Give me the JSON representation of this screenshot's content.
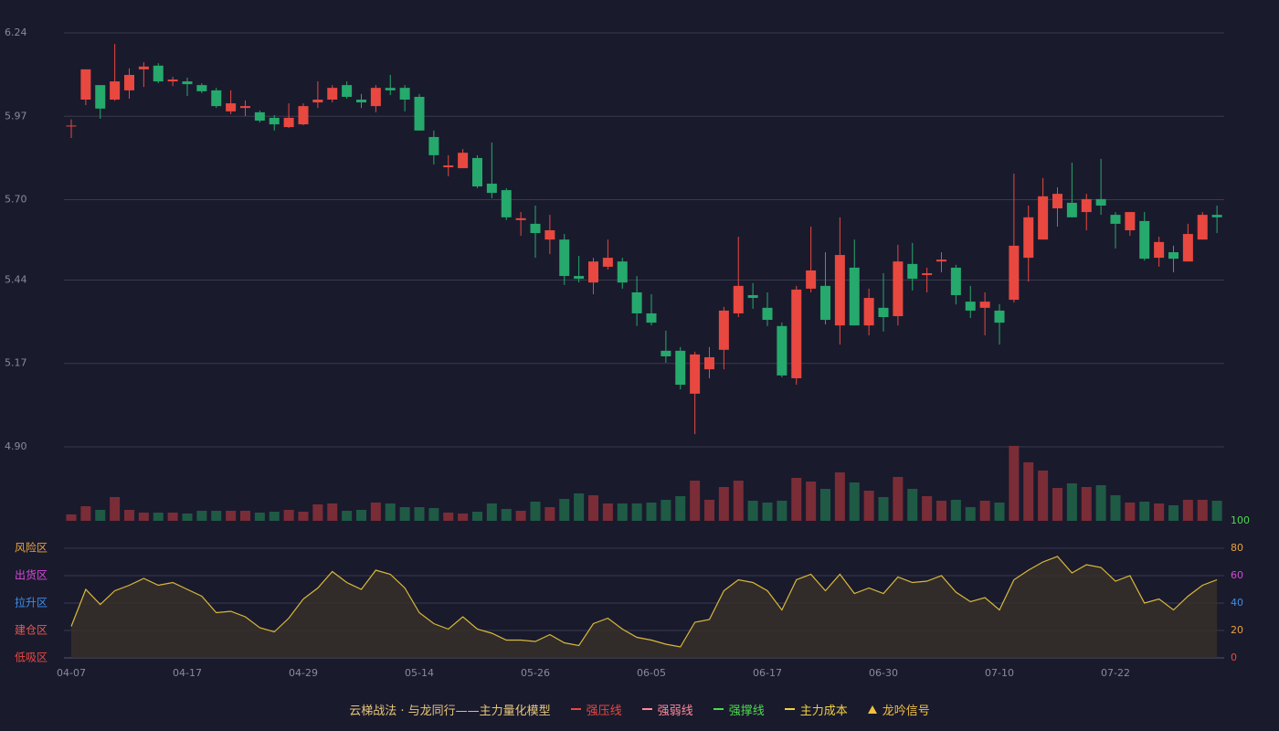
{
  "chart_data": {
    "type": "candlestick",
    "categories": [
      "04-07",
      null,
      null,
      null,
      null,
      null,
      null,
      null,
      "04-17",
      null,
      null,
      null,
      null,
      null,
      null,
      null,
      "04-29",
      null,
      null,
      null,
      null,
      null,
      null,
      null,
      "05-14",
      null,
      null,
      null,
      null,
      null,
      null,
      null,
      "05-26",
      null,
      null,
      null,
      null,
      null,
      null,
      null,
      "06-05",
      null,
      null,
      null,
      null,
      null,
      null,
      null,
      "06-17",
      null,
      null,
      null,
      null,
      null,
      null,
      null,
      "06-30",
      null,
      null,
      null,
      null,
      null,
      null,
      null,
      "07-10",
      null,
      null,
      null,
      null,
      null,
      null,
      null,
      "07-22",
      null,
      null,
      null,
      null,
      null,
      null,
      null
    ],
    "open": [
      5.94,
      6.024,
      6.071,
      6.024,
      6.054,
      6.122,
      6.134,
      6.083,
      6.083,
      6.071,
      6.054,
      5.986,
      5.997,
      5.983,
      5.965,
      5.935,
      5.944,
      6.015,
      6.024,
      6.071,
      6.024,
      6.003,
      6.062,
      6.062,
      6.033,
      5.903,
      5.805,
      5.802,
      5.835,
      5.752,
      5.731,
      5.634,
      5.622,
      5.571,
      5.571,
      5.453,
      5.432,
      5.483,
      5.5,
      5.4,
      5.332,
      5.211,
      5.211,
      5.072,
      5.151,
      5.214,
      5.332,
      5.391,
      5.35,
      5.291,
      5.122,
      5.412,
      5.421,
      5.293,
      5.48,
      5.293,
      5.35,
      5.323,
      5.492,
      5.456,
      5.5,
      5.48,
      5.37,
      5.35,
      5.341,
      5.376,
      5.512,
      5.571,
      5.672,
      5.69,
      5.66,
      5.702,
      5.651,
      5.601,
      5.631,
      5.512,
      5.53,
      5.5,
      5.571,
      5.651
    ],
    "close": [
      5.94,
      6.122,
      5.995,
      6.083,
      6.104,
      6.131,
      6.083,
      6.089,
      6.074,
      6.051,
      6.003,
      6.012,
      6.003,
      5.956,
      5.944,
      5.965,
      6.003,
      6.024,
      6.062,
      6.033,
      6.015,
      6.062,
      6.054,
      6.024,
      5.924,
      5.844,
      5.811,
      5.852,
      5.743,
      5.722,
      5.643,
      5.64,
      5.592,
      5.601,
      5.453,
      5.444,
      5.5,
      5.512,
      5.432,
      5.332,
      5.302,
      5.193,
      5.101,
      5.199,
      5.19,
      5.341,
      5.421,
      5.382,
      5.311,
      5.131,
      5.409,
      5.471,
      5.311,
      5.521,
      5.293,
      5.382,
      5.32,
      5.5,
      5.444,
      5.462,
      5.506,
      5.391,
      5.341,
      5.37,
      5.302,
      5.551,
      5.643,
      5.711,
      5.719,
      5.643,
      5.702,
      5.681,
      5.622,
      5.66,
      5.509,
      5.563,
      5.509,
      5.589,
      5.651,
      5.643
    ],
    "high": [
      5.96,
      6.122,
      6.071,
      6.204,
      6.125,
      6.145,
      6.142,
      6.098,
      6.095,
      6.077,
      6.062,
      6.054,
      6.021,
      5.989,
      5.974,
      6.012,
      6.012,
      6.083,
      6.071,
      6.083,
      6.042,
      6.071,
      6.104,
      6.071,
      6.042,
      5.924,
      5.844,
      5.864,
      5.844,
      5.885,
      5.737,
      5.66,
      5.681,
      5.651,
      5.589,
      5.518,
      5.512,
      5.571,
      5.512,
      5.453,
      5.394,
      5.276,
      5.223,
      5.208,
      5.223,
      5.353,
      5.58,
      5.43,
      5.4,
      5.302,
      5.421,
      5.613,
      5.53,
      5.643,
      5.571,
      5.412,
      5.462,
      5.554,
      5.56,
      5.48,
      5.53,
      5.489,
      5.421,
      5.4,
      5.362,
      5.784,
      5.681,
      5.77,
      5.74,
      5.82,
      5.719,
      5.832,
      5.66,
      5.66,
      5.66,
      5.58,
      5.551,
      5.622,
      5.66,
      5.681
    ],
    "low": [
      5.9,
      6.006,
      5.962,
      6.02,
      6.027,
      6.065,
      6.077,
      6.068,
      6.036,
      6.045,
      5.997,
      5.977,
      5.971,
      5.95,
      5.924,
      5.932,
      5.941,
      5.997,
      6.015,
      6.027,
      5.997,
      5.983,
      6.039,
      5.986,
      5.924,
      5.814,
      5.776,
      5.802,
      5.737,
      5.705,
      5.634,
      5.583,
      5.512,
      5.524,
      5.424,
      5.432,
      5.394,
      5.474,
      5.412,
      5.291,
      5.293,
      5.172,
      5.086,
      4.941,
      5.122,
      5.151,
      5.32,
      5.347,
      5.291,
      5.125,
      5.101,
      5.4,
      5.296,
      5.231,
      5.293,
      5.261,
      5.273,
      5.293,
      5.406,
      5.4,
      5.465,
      5.361,
      5.317,
      5.261,
      5.231,
      5.367,
      5.435,
      5.571,
      5.613,
      5.643,
      5.601,
      5.651,
      5.542,
      5.583,
      5.503,
      5.483,
      5.465,
      5.5,
      5.571,
      5.592
    ],
    "volume": [
      7,
      16,
      12,
      26,
      12,
      9,
      9,
      9,
      8,
      11,
      11,
      11,
      11,
      9,
      10,
      12,
      10,
      18,
      19,
      11,
      12,
      20,
      19,
      15,
      15,
      14,
      9,
      8,
      10,
      19,
      13,
      11,
      21,
      15,
      24,
      30,
      28,
      19,
      19,
      19,
      20,
      23,
      27,
      44,
      23,
      37,
      44,
      22,
      20,
      22,
      47,
      43,
      35,
      53,
      42,
      33,
      26,
      48,
      35,
      27,
      22,
      23,
      15,
      22,
      20,
      82,
      64,
      55,
      36,
      41,
      37,
      39,
      28,
      20,
      21,
      19,
      17,
      23,
      23,
      22
    ],
    "ylim": [
      4.9,
      6.24
    ],
    "yticks": [
      6.24,
      5.97,
      {
        "value": 5.7,
        "label": "5.70"
      },
      5.44,
      5.17,
      {
        "value": 4.9,
        "label": "4.90"
      }
    ],
    "up_color": "#e8483f",
    "down_color": "#26a96c",
    "up_volume_color": "#7a2d36",
    "down_volume_color": "#1f5a45",
    "indicator": {
      "type": "line",
      "color": "#d9b93a",
      "values": [
        23,
        50,
        39,
        49,
        53,
        58,
        53,
        55,
        50,
        45,
        33,
        34,
        30,
        22,
        19,
        29,
        43,
        51,
        63,
        55,
        50,
        64,
        61,
        51,
        33,
        25,
        21,
        30,
        21,
        18,
        13,
        13,
        12,
        17,
        11,
        9,
        25,
        29,
        21,
        15,
        13,
        10,
        8,
        26,
        28,
        49,
        57,
        55,
        49,
        35,
        57,
        61,
        49,
        61,
        47,
        51,
        47,
        59,
        55,
        56,
        60,
        48,
        41,
        44,
        35,
        57,
        64,
        70,
        74,
        62,
        68,
        66,
        56,
        60,
        40,
        43,
        35,
        45,
        53,
        57
      ],
      "ylim": [
        0,
        100
      ],
      "yticks": [
        100,
        80,
        60,
        40,
        20,
        0
      ],
      "ytick_colors": [
        "#4cdc4c",
        "#e8a23a",
        "#d64ad6",
        "#3e8ee8",
        "#e8a23a",
        "#e8483f"
      ],
      "zones": [
        {
          "name": "风险区",
          "color": "#e8a23a"
        },
        {
          "name": "出货区",
          "color": "#d64ad6"
        },
        {
          "name": "拉升区",
          "color": "#3e8ee8"
        },
        {
          "name": "建仓区",
          "color": "#e8584f"
        },
        {
          "name": "低吸区",
          "color": "#e8483f"
        }
      ]
    },
    "legend": {
      "title": "云梯战法 · 与龙同行——主力量化模型",
      "items": [
        {
          "name": "强压线",
          "color": "#e8483f",
          "style": "solid"
        },
        {
          "name": "强弱线",
          "color": "#ff8a9a",
          "style": "dashed"
        },
        {
          "name": "强撑线",
          "color": "#4cdc4c",
          "style": "solid"
        },
        {
          "name": "主力成本",
          "color": "#f0d040",
          "style": "dashed"
        },
        {
          "name": "龙吟信号",
          "color": "#f0c040",
          "style": "triangle"
        }
      ]
    }
  }
}
